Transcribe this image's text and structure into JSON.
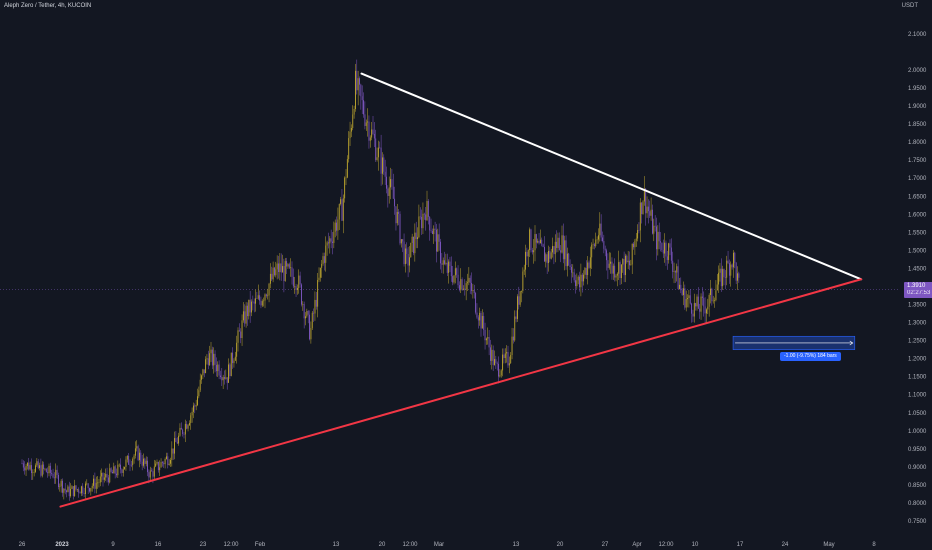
{
  "header": {
    "symbol": "Aleph Zero / Tether, 4h, KUCOIN",
    "currency": "USDT"
  },
  "price_tag": {
    "price": "1.3910",
    "countdown": "02:27:53"
  },
  "range_tag": {
    "text": "-1.00 (-9.75%) 184 bars"
  },
  "colors": {
    "up": "#bfa72f",
    "down": "#7e57c2",
    "resistance": "#ffffff",
    "support": "#f23645",
    "range": "#2962ff"
  },
  "chart_data": {
    "type": "candlestick",
    "title": "Aleph Zero / Tether, 4h, KUCOIN",
    "y_axis": {
      "unit": "USDT",
      "range": [
        0.73,
        2.13
      ],
      "ticks": [
        "2.1000",
        "2.0000",
        "1.9500",
        "1.9000",
        "1.8500",
        "1.8000",
        "1.7500",
        "1.7000",
        "1.6500",
        "1.6000",
        "1.5500",
        "1.5000",
        "1.4500",
        "1.3500",
        "1.3000",
        "1.2500",
        "1.2000",
        "1.1500",
        "1.1000",
        "1.0500",
        "1.0000",
        "0.9500",
        "0.9000",
        "0.8500",
        "0.8000",
        "0.7500"
      ]
    },
    "x_axis": {
      "labels": [
        "26",
        "2023",
        "9",
        "16",
        "23",
        "12:00",
        "Feb",
        "13",
        "20",
        "12:00",
        "Mar",
        "13",
        "20",
        "27",
        "Apr",
        "12:00",
        "10",
        "17",
        "24",
        "May",
        "8"
      ]
    },
    "price_path": [
      {
        "t": "2022-12-26",
        "v": 0.91
      },
      {
        "t": "2022-12-31",
        "v": 0.88
      },
      {
        "t": "2023-01-02",
        "v": 0.83
      },
      {
        "t": "2023-01-06",
        "v": 0.85
      },
      {
        "t": "2023-01-10",
        "v": 0.89
      },
      {
        "t": "2023-01-13",
        "v": 0.94
      },
      {
        "t": "2023-01-15",
        "v": 0.88
      },
      {
        "t": "2023-01-18",
        "v": 0.93
      },
      {
        "t": "2023-01-22",
        "v": 1.07
      },
      {
        "t": "2023-01-24",
        "v": 1.21
      },
      {
        "t": "2023-01-27",
        "v": 1.15
      },
      {
        "t": "2023-01-30",
        "v": 1.33
      },
      {
        "t": "2023-02-01",
        "v": 1.36
      },
      {
        "t": "2023-02-04",
        "v": 1.45
      },
      {
        "t": "2023-02-07",
        "v": 1.42
      },
      {
        "t": "2023-02-09",
        "v": 1.27
      },
      {
        "t": "2023-02-11",
        "v": 1.48
      },
      {
        "t": "2023-02-14",
        "v": 1.62
      },
      {
        "t": "2023-02-16",
        "v": 1.96
      },
      {
        "t": "2023-02-19",
        "v": 1.8
      },
      {
        "t": "2023-02-22",
        "v": 1.64
      },
      {
        "t": "2023-02-24",
        "v": 1.46
      },
      {
        "t": "2023-02-27",
        "v": 1.62
      },
      {
        "t": "2023-03-02",
        "v": 1.45
      },
      {
        "t": "2023-03-06",
        "v": 1.4
      },
      {
        "t": "2023-03-10",
        "v": 1.17
      },
      {
        "t": "2023-03-12",
        "v": 1.2
      },
      {
        "t": "2023-03-15",
        "v": 1.53
      },
      {
        "t": "2023-03-18",
        "v": 1.48
      },
      {
        "t": "2023-03-20",
        "v": 1.53
      },
      {
        "t": "2023-03-23",
        "v": 1.4
      },
      {
        "t": "2023-03-26",
        "v": 1.55
      },
      {
        "t": "2023-03-28",
        "v": 1.45
      },
      {
        "t": "2023-03-31",
        "v": 1.46
      },
      {
        "t": "2023-04-02",
        "v": 1.66
      },
      {
        "t": "2023-04-04",
        "v": 1.53
      },
      {
        "t": "2023-04-06",
        "v": 1.5
      },
      {
        "t": "2023-04-08",
        "v": 1.38
      },
      {
        "t": "2023-04-10",
        "v": 1.34
      },
      {
        "t": "2023-04-12",
        "v": 1.35
      },
      {
        "t": "2023-04-14",
        "v": 1.42
      },
      {
        "t": "2023-04-16",
        "v": 1.48
      },
      {
        "t": "2023-04-17",
        "v": 1.39
      }
    ],
    "current_price": 1.391,
    "trendlines": [
      {
        "name": "resistance",
        "from": {
          "t": "2023-02-17",
          "v": 1.99
        },
        "to": {
          "t": "2023-05-06",
          "v": 1.42
        }
      },
      {
        "name": "support",
        "from": {
          "t": "2023-01-01",
          "v": 0.79
        },
        "to": {
          "t": "2023-05-06",
          "v": 1.42
        }
      }
    ],
    "range_box": {
      "from": {
        "t": "2023-04-16",
        "v": 1.225
      },
      "to": {
        "t": "2023-05-05",
        "v": 1.262
      }
    },
    "grid": false
  }
}
